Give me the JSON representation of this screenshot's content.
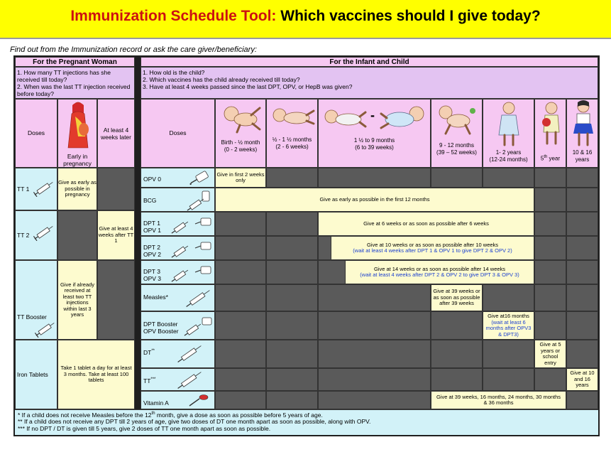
{
  "banner": {
    "title_red": "Immunization Schedule Tool:",
    "title_black": " Which vaccines should I give today?"
  },
  "intro": "Find out from the Immunization record or ask the care giver/beneficiary:",
  "pregnant": {
    "header": "For the Pregnant Woman",
    "q1": "1. How many TT injections has she received till today?",
    "q2": "2. When was the last TT injection received before today?",
    "doses_label": "Doses",
    "col_early": "Early in pregnancy",
    "col_later": "At least 4 weeks later",
    "rows": [
      {
        "label": "TT 1",
        "early": "Give as early as possible in pregnancy"
      },
      {
        "label": "TT 2",
        "later": "Give at least 4 weeks after TT 1"
      },
      {
        "label": "TT Booster",
        "early": "Give if already received at least two TT injections within last 3 years"
      },
      {
        "label": "Iron Tablets",
        "span": "Take 1 tablet a day for at least 3 months. Take at least 100 tablets"
      }
    ]
  },
  "infant": {
    "header": "For the Infant and Child",
    "q1": "1. How old is the child?",
    "q2": "2. Which vaccines has the child already received till today?",
    "q3": "3. Have at least 4 weeks passed since the last DPT, OPV, or HepB was given?",
    "doses_label": "Doses",
    "ages": [
      {
        "line1": "Birth - ½ month",
        "line2": "(0 - 2 weeks)"
      },
      {
        "line1": "½ - 1 ½ months",
        "line2": "(2 - 6 weeks)"
      },
      {
        "line1": "1 ½ to 9 months",
        "line2": "(6 to 39 weeks)"
      },
      {
        "line1": "9 - 12 months",
        "line2": "(39 – 52 weeks)"
      },
      {
        "line1": "1- 2 years",
        "line2": "(12-24 months)"
      },
      {
        "line1": "5",
        "sup": "th",
        "line2": " year"
      },
      {
        "line1": "10 & 16",
        "line2": "years"
      }
    ],
    "dash": "-",
    "rows": {
      "opv0": {
        "label": "OPV 0",
        "note": "Give in first 2 weeks only"
      },
      "bcg": {
        "label": "BCG",
        "note": "Give as early as possible in the first 12 months"
      },
      "dpt1": {
        "label1": "DPT 1",
        "label2": "OPV 1",
        "note": "Give at 6 weeks or as soon as possible after 6 weeks"
      },
      "dpt2": {
        "label1": "DPT 2",
        "label2": "OPV 2",
        "note1": "Give at 10 weeks or as soon as possible after 10 weeks",
        "note2": "(wait at least 4 weeks after DPT 1 & OPV 1 to give DPT 2 & OPV 2)"
      },
      "dpt3": {
        "label1": "DPT 3",
        "label2": "OPV 3",
        "note1": "Give at 14 weeks or as soon as possible after 14 weeks",
        "note2": "(wait at least 4 weeks after DPT 2 & OPV 2 to give DPT 3 & OPV 3)"
      },
      "measles": {
        "label": "Measles*",
        "note": "Give at 39 weeks or as soon as possible after 39 weeks"
      },
      "dptb": {
        "label1": "DPT Booster",
        "label2": "OPV Booster",
        "note1": "Give at16 months",
        "note2": "(wait at least 6 months after OPV3 & DPT3)"
      },
      "dt": {
        "label": "DT",
        "sup": "**",
        "note": "Give at 5 years or school entry"
      },
      "tt": {
        "label": "TT",
        "sup": "***",
        "note": "Give at 10 and 16 years"
      },
      "vita": {
        "label": "Vitamin A",
        "note": "Give at 39 weeks, 16 months, 24 months, 30 months & 36 months"
      }
    }
  },
  "footnotes": {
    "f1a": "* If a child does not receive Measles before the 12",
    "f1sup": "th",
    "f1b": " month, give a dose as soon as possible before 5 years of age.",
    "f2": "**   If a child does not receive any DPT till 2 years of age, give two doses of DT one month apart as soon as possible, along with OPV.",
    "f3": "*** If no DPT / DT is given till 5 years, give 2 doses of TT one month apart as soon as possible."
  },
  "colors": {
    "banner": "#ffff00",
    "title_red": "#cc1111",
    "pink": "#f6c8f2",
    "lavender": "#e3c3f2",
    "cyan": "#d2f2f8",
    "cream": "#fdfbcf",
    "gray": "#5a5a5a",
    "blue_note": "#1a3fd0"
  },
  "icons": [
    "syringe-icon",
    "vaccine-vial-icon",
    "oral-drops-icon",
    "spoon-icon",
    "pregnant-woman-illustration",
    "newborn-illustration",
    "infant-illustration",
    "crawling-baby-illustration",
    "toddler-illustration",
    "child-illustration",
    "schoolgirl-illustration"
  ]
}
